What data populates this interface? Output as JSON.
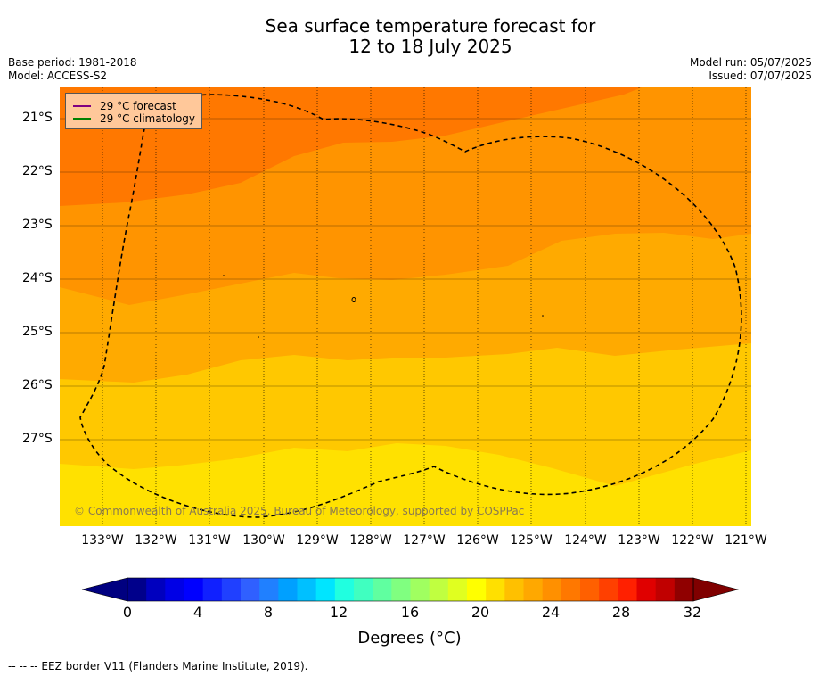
{
  "header": {
    "title_line1": "Sea surface temperature forecast for",
    "title_line2": "12 to 18 July 2025",
    "base_period": "Base period: 1981-2018",
    "model": "Model: ACCESS-S2",
    "model_run": "Model run: 05/07/2025",
    "issued": "Issued: 07/07/2025"
  },
  "legend": {
    "forecast_label": "29 °C  forecast",
    "forecast_color": "#800080",
    "climatology_label": "29 °C  climatology",
    "climatology_color": "#008000"
  },
  "map": {
    "lat_labels": [
      "21°S",
      "22°S",
      "23°S",
      "24°S",
      "25°S",
      "26°S",
      "27°S"
    ],
    "lon_labels": [
      "133°W",
      "132°W",
      "131°W",
      "130°W",
      "129°W",
      "128°W",
      "127°W",
      "126°W",
      "125°W",
      "124°W",
      "123°W",
      "122°W",
      "121°W"
    ],
    "copyright": "© Commonwealth of Australia 2025, Bureau of Meteorology, supported by COSPPac"
  },
  "colorbar": {
    "tick_labels": [
      "0",
      "4",
      "8",
      "12",
      "16",
      "20",
      "24",
      "28",
      "32"
    ],
    "title": "Degrees (°C)",
    "colors": [
      "#00008b",
      "#0000bf",
      "#0000e6",
      "#0000ff",
      "#1020ff",
      "#2040ff",
      "#3060ff",
      "#2080ff",
      "#00a0ff",
      "#00c0ff",
      "#00e5ff",
      "#20ffe0",
      "#40ffc0",
      "#60ffa0",
      "#80ff80",
      "#a0ff60",
      "#c0ff40",
      "#e0ff20",
      "#ffff00",
      "#ffe000",
      "#ffc000",
      "#ffa800",
      "#ff9000",
      "#ff7800",
      "#ff6000",
      "#ff4000",
      "#ff2000",
      "#e00000",
      "#c00000",
      "#900000"
    ],
    "under_color": "#000080",
    "over_color": "#800000"
  },
  "footer": {
    "eez_note": "--  --  -- EEZ border V11 (Flanders Marine Institute, 2019)."
  }
}
